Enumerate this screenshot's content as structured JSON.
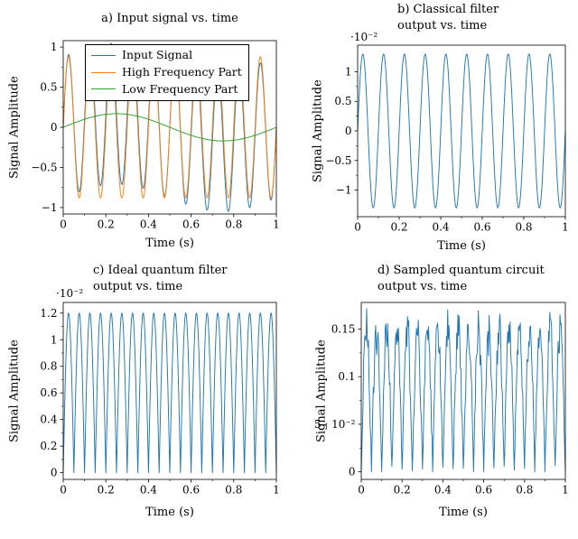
{
  "figure": {
    "background": "#ffffff",
    "text_color": "#000000",
    "line_color": "#1f77b4"
  },
  "chart_data": [
    {
      "id": "a",
      "type": "line",
      "title": "a) Input signal vs. time",
      "xlabel": "Time (s)",
      "ylabel": "Signal Amplitude",
      "xlim": [
        0,
        1
      ],
      "ylim": [
        -1.08,
        1.08
      ],
      "xticks": [
        0,
        0.2,
        0.4,
        0.6,
        0.8,
        1
      ],
      "xtick_labels": [
        "0",
        "0.2",
        "0.4",
        "0.6",
        "0.8",
        "1"
      ],
      "yticks": [
        -1,
        -0.5,
        0,
        0.5,
        1
      ],
      "ytick_labels": [
        "−1",
        "−0.5",
        "0",
        "0.5",
        "1"
      ],
      "grid": false,
      "legend_position": "upper center",
      "series": [
        {
          "name": "Input Signal",
          "color": "#1f77b4",
          "gen": {
            "kind": "sum_sines",
            "samples": 800,
            "components": [
              {
                "amp": 0.88,
                "freq": 10,
                "phase": 0
              },
              {
                "amp": 0.17,
                "freq": 1,
                "phase": 0
              }
            ]
          }
        },
        {
          "name": "High Frequency Part",
          "color": "#ff7f0e",
          "gen": {
            "kind": "sum_sines",
            "samples": 800,
            "components": [
              {
                "amp": 0.88,
                "freq": 10,
                "phase": 0
              }
            ]
          }
        },
        {
          "name": "Low Frequency Part",
          "color": "#2ca02c",
          "gen": {
            "kind": "sum_sines",
            "samples": 400,
            "components": [
              {
                "amp": 0.17,
                "freq": 1,
                "phase": 0
              }
            ]
          }
        }
      ]
    },
    {
      "id": "b",
      "type": "line",
      "title": "b) Classical filter\noutput vs. time",
      "xlabel": "Time (s)",
      "ylabel": "Signal Amplitude",
      "offset_label": "·10⁻²",
      "xlim": [
        0,
        1
      ],
      "ylim": [
        -1.45,
        1.45
      ],
      "xticks": [
        0,
        0.2,
        0.4,
        0.6,
        0.8,
        1
      ],
      "xtick_labels": [
        "0",
        "0.2",
        "0.4",
        "0.6",
        "0.8",
        "1"
      ],
      "yticks": [
        -1,
        -0.5,
        0,
        0.5,
        1
      ],
      "ytick_labels": [
        "−1",
        "−0.5",
        "0",
        "0.5",
        "1"
      ],
      "grid": false,
      "series": [
        {
          "name": "Classical filter output",
          "color": "#1f77b4",
          "gen": {
            "kind": "sum_sines",
            "samples": 800,
            "components": [
              {
                "amp": 1.3,
                "freq": 10,
                "phase": 0
              }
            ]
          }
        }
      ]
    },
    {
      "id": "c",
      "type": "line",
      "title": "c) Ideal quantum filter\noutput vs. time",
      "xlabel": "Time (s)",
      "ylabel": "Signal Amplitude",
      "offset_label": "·10⁻²",
      "xlim": [
        0,
        1
      ],
      "ylim": [
        -0.05,
        1.28
      ],
      "xticks": [
        0,
        0.2,
        0.4,
        0.6,
        0.8,
        1
      ],
      "xtick_labels": [
        "0",
        "0.2",
        "0.4",
        "0.6",
        "0.8",
        "1"
      ],
      "yticks": [
        0,
        0.2,
        0.4,
        0.6,
        0.8,
        1,
        1.2
      ],
      "ytick_labels": [
        "0",
        "0.2",
        "0.4",
        "0.6",
        "0.8",
        "1",
        "1.2"
      ],
      "grid": false,
      "series": [
        {
          "name": "Ideal quantum filter output",
          "color": "#1f77b4",
          "gen": {
            "kind": "abs_sine",
            "samples": 1000,
            "amp": 1.2,
            "freq": 10
          }
        }
      ]
    },
    {
      "id": "d",
      "type": "line",
      "title": "d) Sampled quantum circuit\noutput vs. time",
      "xlabel": "Time (s)",
      "ylabel": "Signal Amplitude",
      "xlim": [
        0,
        1
      ],
      "ylim": [
        -0.008,
        0.178
      ],
      "xticks": [
        0,
        0.2,
        0.4,
        0.6,
        0.8,
        1
      ],
      "xtick_labels": [
        "0",
        "0.2",
        "0.4",
        "0.6",
        "0.8",
        "1"
      ],
      "yticks": [
        0,
        0.05,
        0.1,
        0.15
      ],
      "ytick_labels": [
        "0",
        "5 · 10⁻²",
        "0.1",
        "0.15"
      ],
      "grid": false,
      "series": [
        {
          "name": "Sampled quantum circuit output",
          "color": "#1f77b4",
          "gen": {
            "kind": "abs_sine",
            "samples": 340,
            "amp": 0.148,
            "freq": 10,
            "seed": 42,
            "clamp_min": 0,
            "noise": {
              "mult": 0.15,
              "add": 0.007
            }
          }
        }
      ]
    }
  ]
}
